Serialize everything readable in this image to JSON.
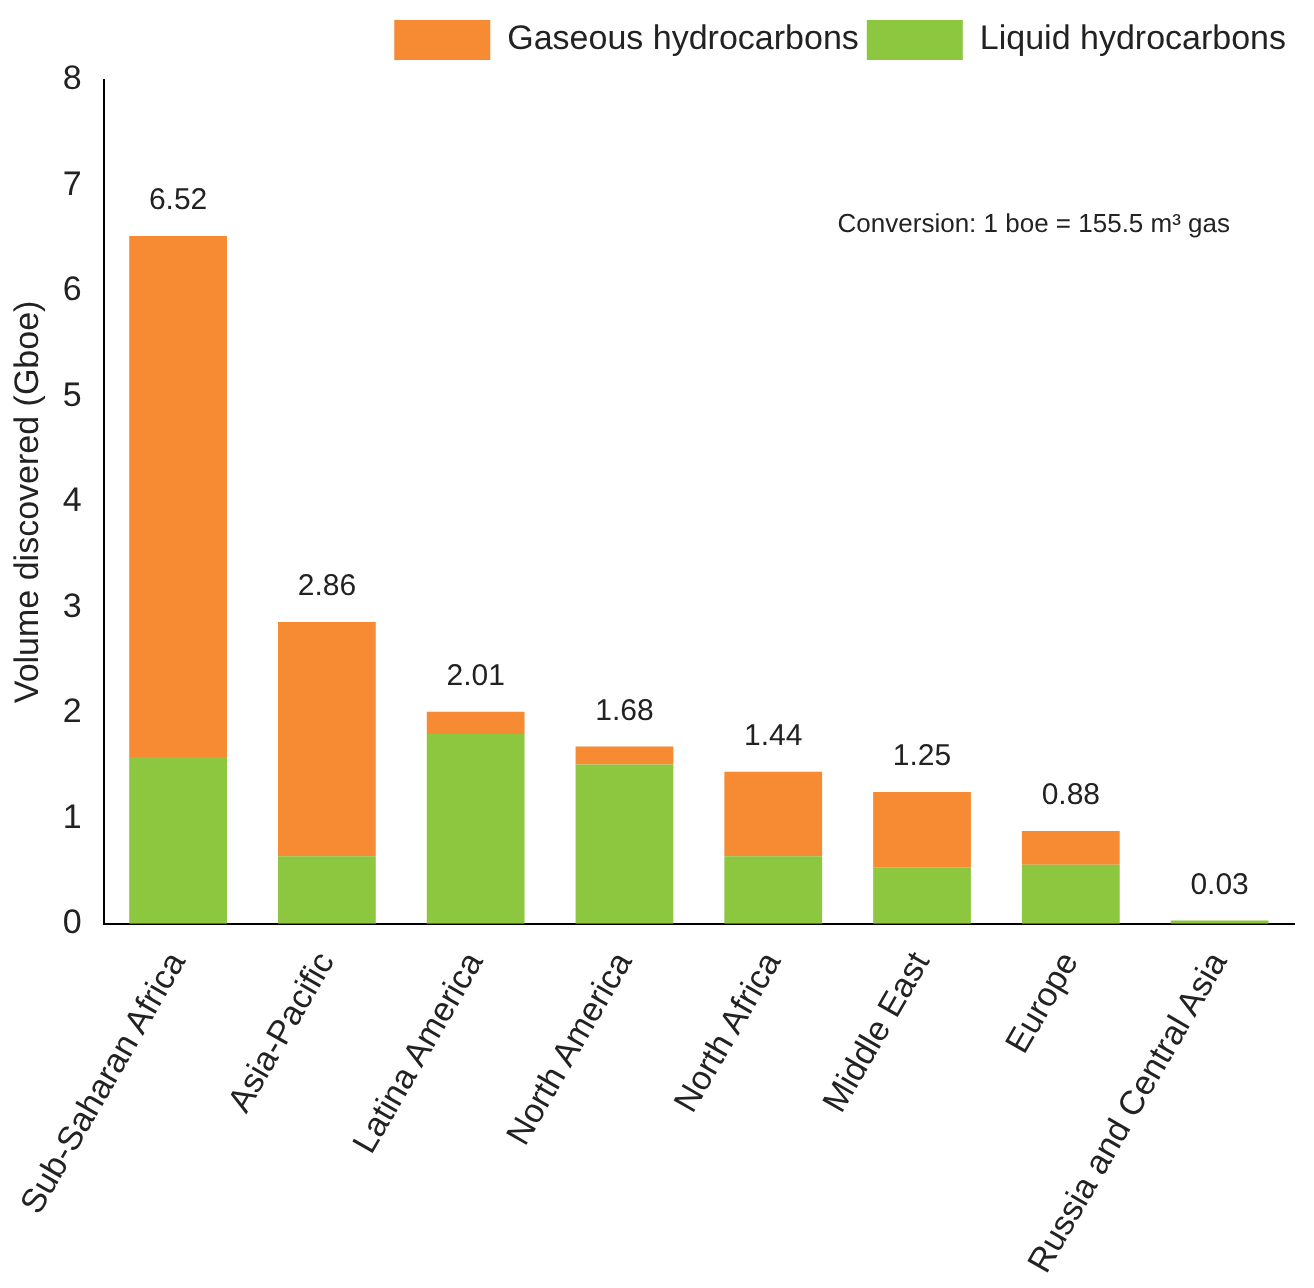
{
  "chart_data": {
    "type": "bar",
    "stacked": true,
    "ylabel": "Volume discovered (Gboe)",
    "categories": [
      "Sub-Saharan Africa",
      "Asia-Pacific",
      "Latina America",
      "North America",
      "North Africa",
      "Middle East",
      "Europe",
      "Russia and Central Asia"
    ],
    "series": [
      {
        "name": "Liquid hydrocarbons",
        "color": "#8dc63f",
        "values": [
          1.58,
          0.64,
          1.8,
          1.51,
          0.64,
          0.53,
          0.56,
          0.03
        ]
      },
      {
        "name": "Gaseous hydrocarbons",
        "color": "#f68b33",
        "values": [
          4.94,
          2.22,
          0.21,
          0.17,
          0.8,
          0.72,
          0.32,
          null
        ]
      }
    ],
    "totals": [
      "6.52",
      "2.86",
      "2.01",
      "1.68",
      "1.44",
      "1.25",
      "0.88",
      "0.03"
    ],
    "ylim": [
      0,
      8
    ],
    "yticks": [
      0,
      1,
      2,
      3,
      4,
      5,
      6,
      7,
      8
    ],
    "grid": false,
    "legend": "top right",
    "annotations": [
      "Conversion: 1 boe = 155.5 m³ gas"
    ]
  }
}
